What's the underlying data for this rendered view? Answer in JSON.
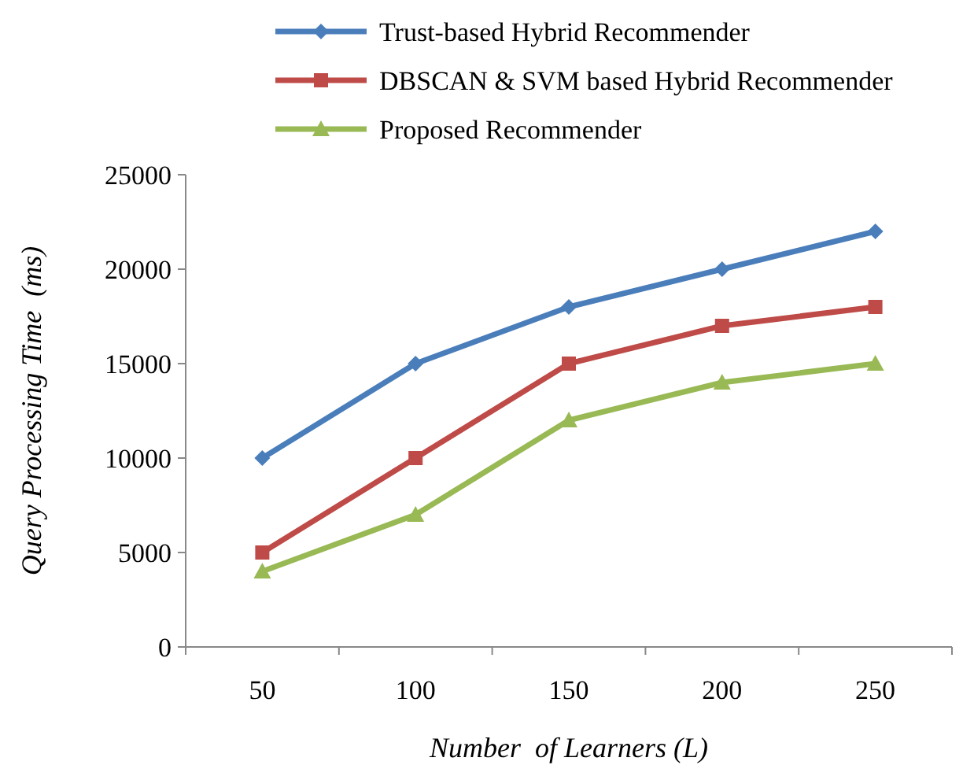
{
  "chart_data": {
    "type": "line",
    "xlabel": "Number  of Learners (L)",
    "ylabel": "Query Processing Time  (ms)",
    "categories": [
      "50",
      "100",
      "150",
      "200",
      "250"
    ],
    "series": [
      {
        "name": "Trust-based Hybrid Recommender",
        "color": "#4a7ebb",
        "marker": "diamond",
        "values": [
          10000,
          15000,
          18000,
          20000,
          22000
        ]
      },
      {
        "name": "DBSCAN & SVM based Hybrid Recommender",
        "color": "#be4b48",
        "marker": "square",
        "values": [
          5000,
          10000,
          15000,
          17000,
          18000
        ]
      },
      {
        "name": "Proposed Recommender",
        "color": "#98b954",
        "marker": "triangle",
        "values": [
          4000,
          7000,
          12000,
          14000,
          15000
        ]
      }
    ],
    "ylim": [
      0,
      25000
    ],
    "yticks": [
      0,
      5000,
      10000,
      15000,
      20000,
      25000
    ],
    "grid": false,
    "legend": "top"
  }
}
